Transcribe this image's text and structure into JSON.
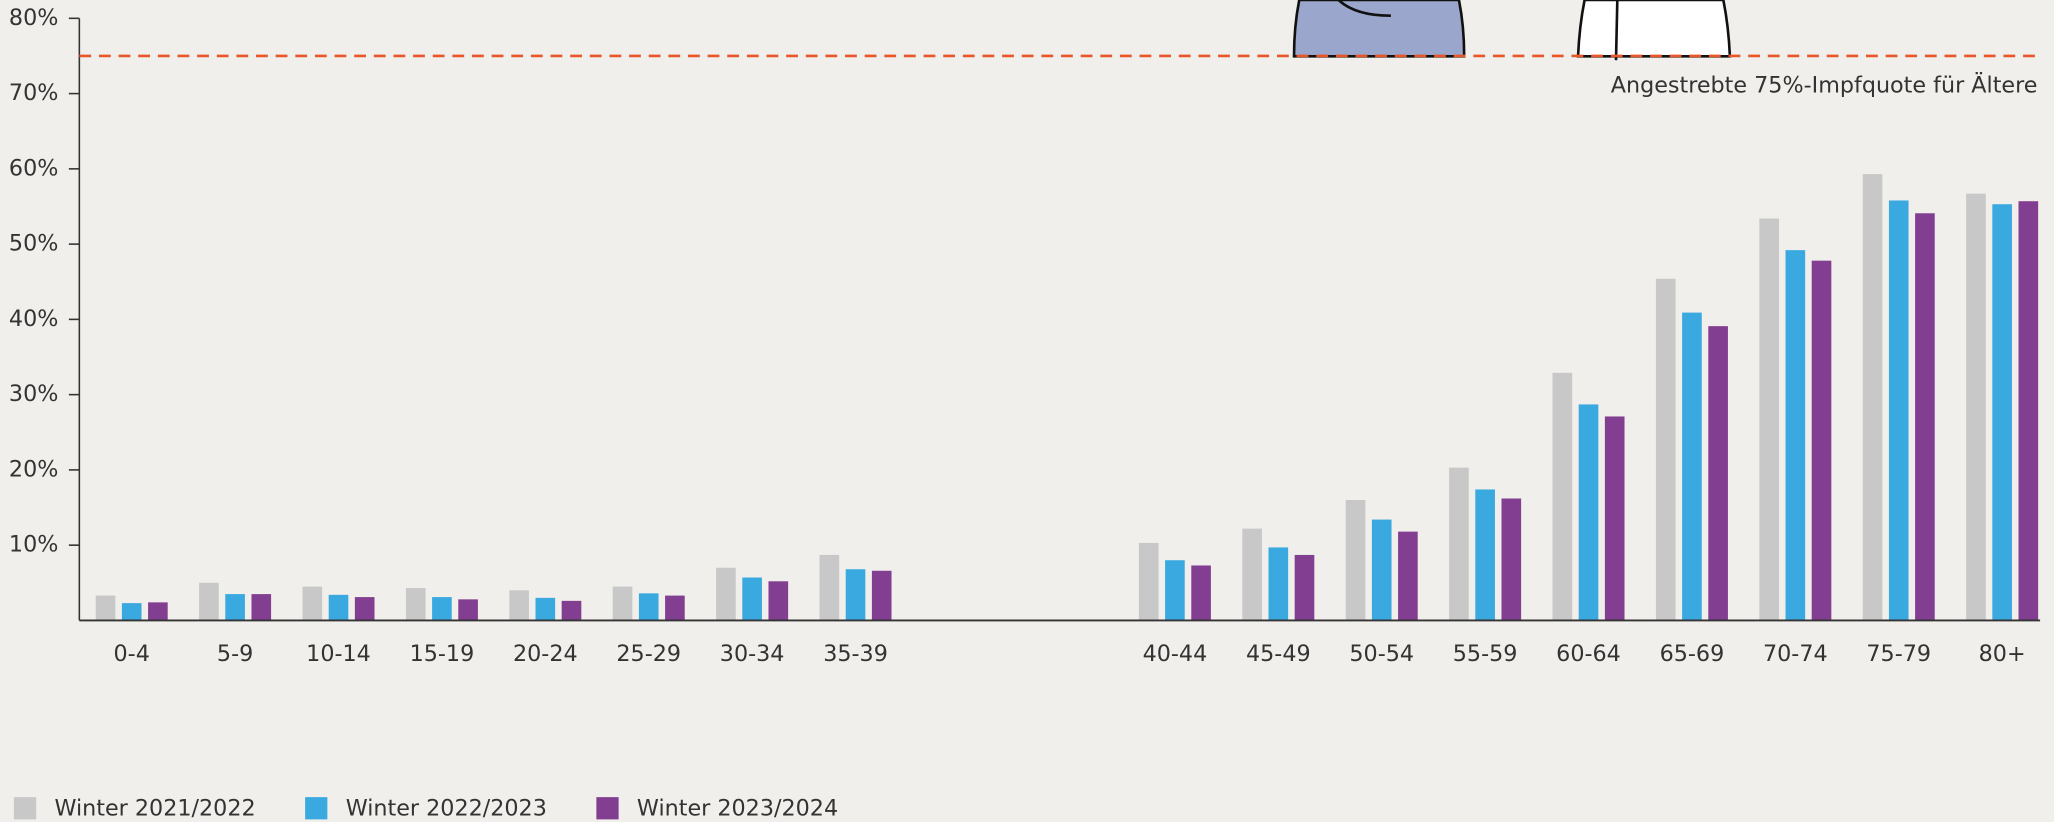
{
  "chart_data": {
    "type": "bar",
    "categories": [
      "0-4",
      "5-9",
      "10-14",
      "15-19",
      "20-24",
      "25-29",
      "30-34",
      "35-39",
      "40-44",
      "45-49",
      "50-54",
      "55-59",
      "60-64",
      "65-69",
      "70-74",
      "75-79",
      "80+"
    ],
    "series": [
      {
        "name": "Winter 2021/2022",
        "color": "#c8c8c8",
        "values": [
          3.3,
          5.0,
          4.5,
          4.3,
          4.0,
          4.5,
          7.0,
          8.7,
          10.3,
          12.2,
          16.0,
          20.3,
          32.9,
          45.4,
          53.4,
          59.3,
          56.7
        ]
      },
      {
        "name": "Winter 2022/2023",
        "color": "#3aa9e0",
        "values": [
          2.3,
          3.5,
          3.4,
          3.1,
          3.0,
          3.6,
          5.7,
          6.8,
          8.0,
          9.7,
          13.4,
          17.4,
          28.7,
          40.9,
          49.2,
          55.8,
          55.3
        ]
      },
      {
        "name": "Winter 2023/2024",
        "color": "#823f91",
        "values": [
          2.4,
          3.5,
          3.1,
          2.8,
          2.6,
          3.3,
          5.2,
          6.6,
          7.3,
          8.7,
          11.8,
          16.2,
          27.1,
          39.1,
          47.8,
          54.1,
          55.7
        ]
      }
    ],
    "ylim": [
      0,
      80
    ],
    "yticks": [
      {
        "value": 10,
        "label": "10%"
      },
      {
        "value": 20,
        "label": "20%"
      },
      {
        "value": 30,
        "label": "30%"
      },
      {
        "value": 40,
        "label": "40%"
      },
      {
        "value": 50,
        "label": "50%"
      },
      {
        "value": 60,
        "label": "60%"
      },
      {
        "value": 70,
        "label": "70%"
      },
      {
        "value": 80,
        "label": "80%"
      }
    ],
    "reference_line": {
      "value": 75,
      "label": "Angestrebte 75%-Impfquote für Ältere",
      "color": "#e8562a"
    },
    "legend": "bottom-left"
  }
}
